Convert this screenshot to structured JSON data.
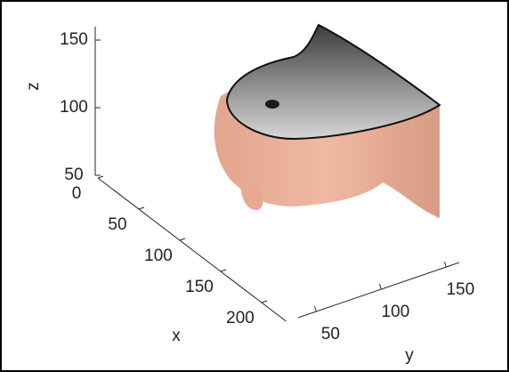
{
  "chart_data": {
    "type": "surface3d",
    "xlabel": "x",
    "ylabel": "y",
    "zlabel": "z",
    "xlim": [
      0,
      230
    ],
    "xticks": [
      0,
      50,
      100,
      150,
      200
    ],
    "ylim": [
      36,
      160
    ],
    "yticks": [
      50,
      100,
      150
    ],
    "zlim": [
      50,
      160
    ],
    "zticks": [
      50,
      100,
      150
    ]
  }
}
